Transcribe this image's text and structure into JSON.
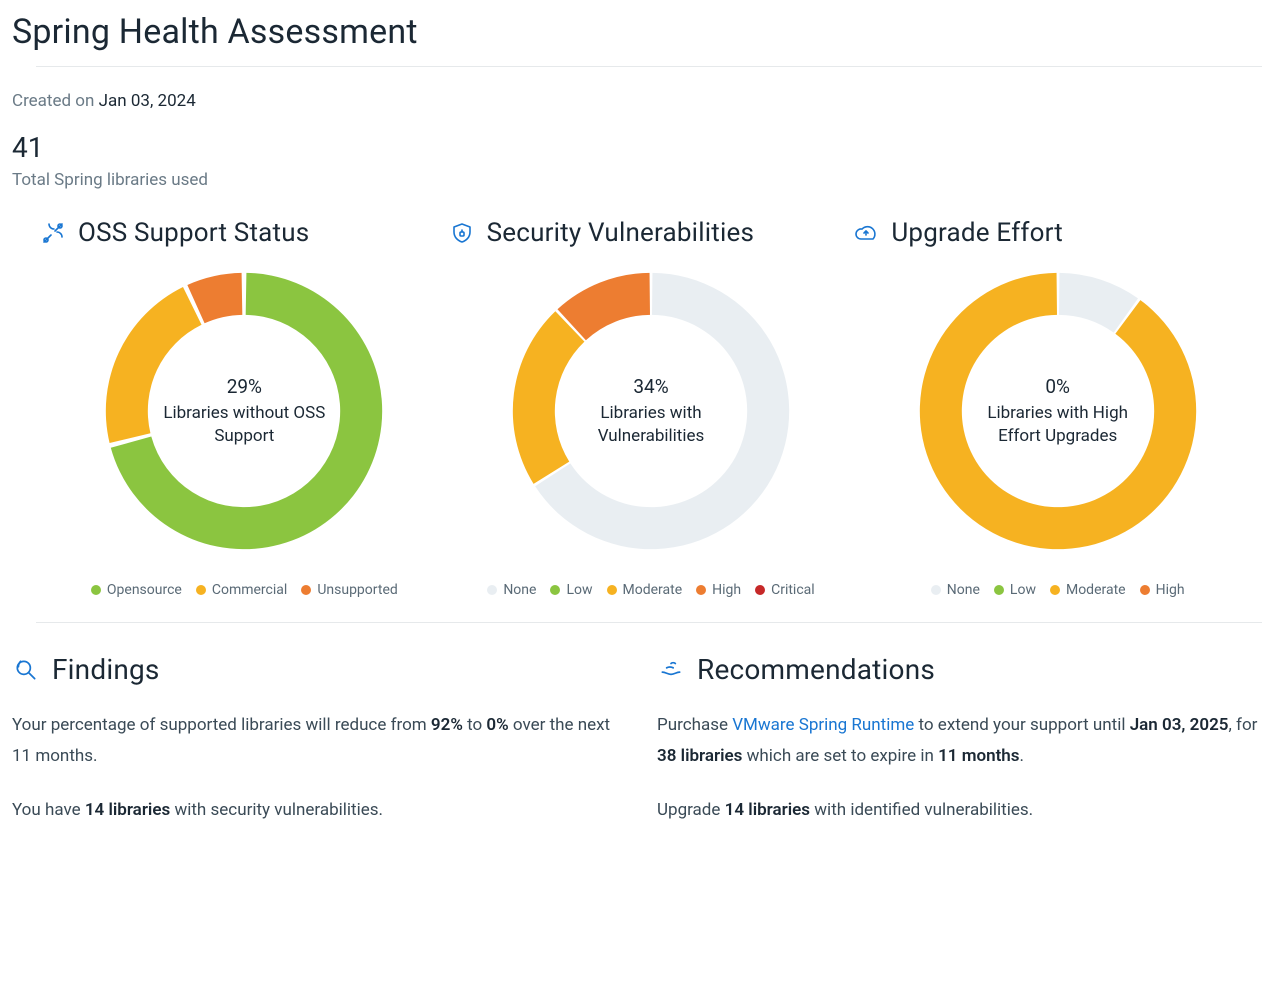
{
  "header": {
    "title": "Spring Health Assessment",
    "created_label": "Created on",
    "created_value": "Jan 03, 2024",
    "total_value": "41",
    "total_label": "Total Spring libraries used"
  },
  "colors": {
    "green": "#8bc540",
    "yellow": "#f6b221",
    "orange": "#ed7d31",
    "red": "#c62828",
    "none": "#e9eef2",
    "legend_text": "#5a6a76",
    "icon_blue": "#1976d2"
  },
  "charts": {
    "oss": {
      "title": "OSS Support Status",
      "center_pct": "29%",
      "center_label": "Libraries without OSS Support",
      "segments": [
        {
          "label": "Opensource",
          "value": 71,
          "color": "#8bc540"
        },
        {
          "label": "Commercial",
          "value": 22,
          "color": "#f6b221"
        },
        {
          "label": "Unsupported",
          "value": 7,
          "color": "#ed7d31"
        }
      ],
      "ring_thickness": 42,
      "gap_deg": 2
    },
    "sec": {
      "title": "Security Vulnerabilities",
      "center_pct": "34%",
      "center_label": "Libraries with Vulnerabilities",
      "segments": [
        {
          "label": "None",
          "value": 66,
          "color": "#e9eef2"
        },
        {
          "label": "Low",
          "value": 0,
          "color": "#8bc540"
        },
        {
          "label": "Moderate",
          "value": 22,
          "color": "#f6b221"
        },
        {
          "label": "High",
          "value": 12,
          "color": "#ed7d31"
        },
        {
          "label": "Critical",
          "value": 0,
          "color": "#c62828"
        }
      ],
      "ring_thickness": 42,
      "gap_deg": 1.2
    },
    "upg": {
      "title": "Upgrade Effort",
      "center_pct": "0%",
      "center_label": "Libraries with High Effort Upgrades",
      "segments": [
        {
          "label": "None",
          "value": 10,
          "color": "#e9eef2"
        },
        {
          "label": "Low",
          "value": 0,
          "color": "#8bc540"
        },
        {
          "label": "Moderate",
          "value": 90,
          "color": "#f6b221"
        },
        {
          "label": "High",
          "value": 0,
          "color": "#ed7d31"
        }
      ],
      "ring_thickness": 42,
      "gap_deg": 1.2
    }
  },
  "findings": {
    "title": "Findings",
    "p1_a": "Your percentage of supported libraries will reduce from ",
    "p1_b": "92%",
    "p1_c": " to ",
    "p1_d": "0%",
    "p1_e": " over the next 11 months.",
    "p2_a": "You have ",
    "p2_b": "14 libraries",
    "p2_c": " with security vulnerabilities."
  },
  "recommendations": {
    "title": "Recommendations",
    "p1_a": "Purchase ",
    "p1_link": "VMware Spring Runtime",
    "p1_b": " to extend your support until ",
    "p1_c": "Jan 03, 2025",
    "p1_d": ", for ",
    "p1_e": "38 libraries",
    "p1_f": " which are set to expire in ",
    "p1_g": "11 months",
    "p1_h": ".",
    "p2_a": "Upgrade ",
    "p2_b": "14 libraries",
    "p2_c": " with identified vulnerabilities."
  }
}
